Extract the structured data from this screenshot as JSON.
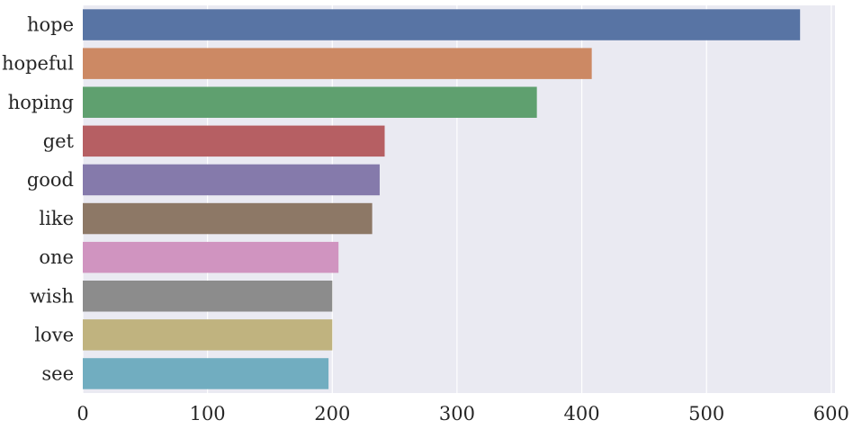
{
  "chart_data": {
    "type": "bar",
    "orientation": "horizontal",
    "title": "",
    "xlabel": "",
    "ylabel": "",
    "categories": [
      "hope",
      "hopeful",
      "hoping",
      "get",
      "good",
      "like",
      "one",
      "wish",
      "love",
      "see"
    ],
    "values": [
      575,
      408,
      364,
      242,
      238,
      232,
      205,
      200,
      200,
      197
    ],
    "colors": [
      "#5874a4",
      "#cc8964",
      "#5fa06f",
      "#b65f63",
      "#857aab",
      "#8d7866",
      "#d094c0",
      "#8c8c8c",
      "#c0b37f",
      "#71adc0"
    ],
    "xlim": [
      0,
      603
    ],
    "xticks": [
      "0",
      "100",
      "200",
      "300",
      "400",
      "500",
      "600"
    ],
    "grid": true,
    "background": "#eaeaf2",
    "grid_color": "#ffffff"
  }
}
